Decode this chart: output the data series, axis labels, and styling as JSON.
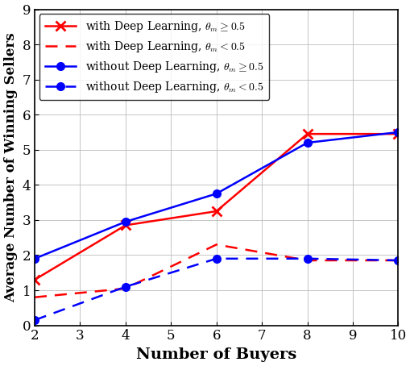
{
  "x": [
    2,
    4,
    6,
    8,
    10
  ],
  "dl_ge05": [
    1.3,
    2.85,
    3.25,
    5.45,
    5.45
  ],
  "dl_lt05": [
    0.8,
    1.05,
    2.3,
    1.85,
    1.85
  ],
  "nodl_ge05": [
    1.9,
    2.95,
    3.75,
    5.2,
    5.5
  ],
  "nodl_lt05": [
    0.15,
    1.1,
    1.9,
    1.9,
    1.85
  ],
  "xlabel": "Number of Buyers",
  "ylabel": "Average Number of Winning Sellers",
  "ylim": [
    0,
    9
  ],
  "yticks": [
    0,
    1,
    2,
    3,
    4,
    5,
    6,
    7,
    8,
    9
  ],
  "xticks": [
    2,
    3,
    4,
    5,
    6,
    7,
    8,
    9,
    10
  ],
  "legend_labels": [
    "with Deep Learning, $\\theta_m \\geq 0.5$",
    "with Deep Learning, $\\theta_m < 0.5$",
    "without Deep Learning, $\\theta_m \\geq 0.5$",
    "without Deep Learning, $\\theta_m < 0.5$"
  ],
  "color_red": "#FF0000",
  "color_blue": "#0000FF",
  "grid_color": "#bbbbbb",
  "figsize": [
    5.1,
    4.54
  ],
  "dpi": 100
}
